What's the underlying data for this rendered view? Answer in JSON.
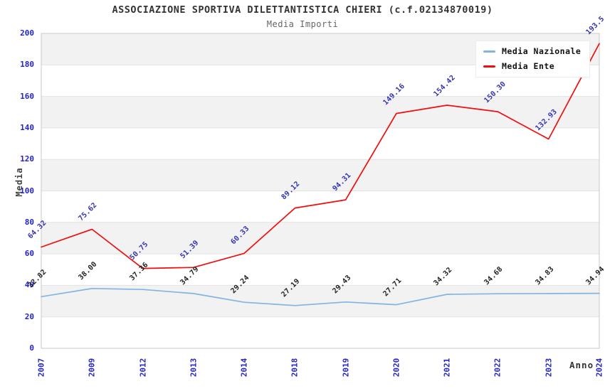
{
  "header": {
    "title": "ASSOCIAZIONE SPORTIVA DILETTANTISTICA CHIERI (c.f.02134870019)",
    "subtitle": "Media Importi"
  },
  "legend": {
    "items": [
      {
        "label": "Media Nazionale",
        "color": "#82b4e2"
      },
      {
        "label": "Media Ente",
        "color": "#f20d0d"
      }
    ]
  },
  "axes": {
    "y_title": "Media",
    "x_title": "Anno",
    "y_ticks": [
      "0",
      "20",
      "40",
      "60",
      "80",
      "100",
      "120",
      "140",
      "160",
      "180",
      "200"
    ]
  },
  "colors": {
    "tick_label": "#2323cb",
    "band_gray": "#f2f2f2",
    "gridline": "#e2e2e2",
    "plot_border": "#c9c9c9",
    "series_nazionale": "#82b4e2",
    "series_ente": "#f20d0d",
    "label_nazionale": "#222222",
    "label_ente": "#3333b4"
  },
  "chart_data": {
    "type": "line",
    "title": "ASSOCIAZIONE SPORTIVA DILETTANTISTICA CHIERI (c.f.02134870019)",
    "subtitle": "Media Importi",
    "xlabel": "Anno",
    "ylabel": "Media",
    "ylim": [
      0,
      200
    ],
    "y_tick_step": 20,
    "grid": "horizontal gridlines with alternating gray/white bands every 20 units",
    "legend_position": "top-right inside plot",
    "categories": [
      "2007",
      "2009",
      "2012",
      "2013",
      "2014",
      "2018",
      "2019",
      "2020",
      "2021",
      "2022",
      "2023",
      "2024"
    ],
    "series": [
      {
        "name": "Media Nazionale",
        "color": "#82b4e2",
        "values": [
          32.82,
          38.0,
          37.36,
          34.79,
          29.24,
          27.19,
          29.43,
          27.71,
          34.32,
          34.68,
          34.83,
          34.94
        ],
        "point_labels": [
          "32.82",
          "38.00",
          "37.36",
          "34.79",
          "29.24",
          "27.19",
          "29.43",
          "27.71",
          "34.32",
          "34.68",
          "34.83",
          "34.94"
        ]
      },
      {
        "name": "Media Ente",
        "color": "#f20d0d",
        "values": [
          64.32,
          75.62,
          50.75,
          51.39,
          60.33,
          89.12,
          94.31,
          149.16,
          154.42,
          150.3,
          132.93,
          193.5
        ],
        "point_labels": [
          "64.32",
          "75.62",
          "50.75",
          "51.39",
          "60.33",
          "89.12",
          "94.31",
          "149.16",
          "154.42",
          "150.30",
          "132.93",
          "193.5"
        ]
      }
    ]
  }
}
